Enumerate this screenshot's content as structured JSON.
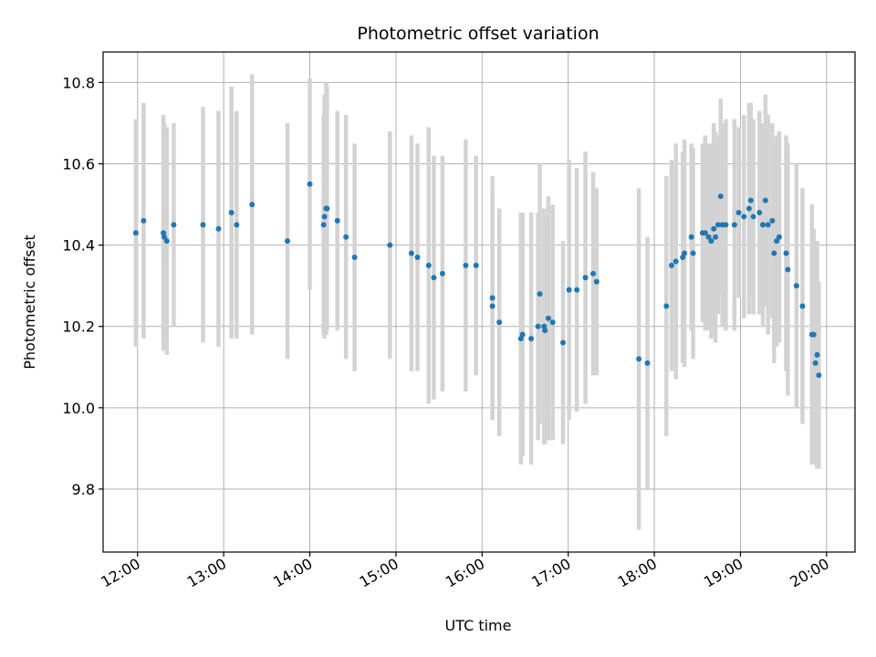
{
  "chart_data": {
    "type": "scatter",
    "title": "Photometric offset variation",
    "xlabel": "UTC time",
    "ylabel": "Photometric offset",
    "x_unit": "hour (UTC)",
    "xlim": [
      11.6,
      20.33
    ],
    "ylim": [
      9.645,
      10.875
    ],
    "x_ticks": [
      12,
      13,
      14,
      15,
      16,
      17,
      18,
      19,
      20
    ],
    "x_tick_labels": [
      "12:00",
      "13:00",
      "14:00",
      "15:00",
      "16:00",
      "17:00",
      "18:00",
      "19:00",
      "20:00"
    ],
    "y_ticks": [
      9.8,
      10.0,
      10.2,
      10.4,
      10.6,
      10.8
    ],
    "y_tick_labels": [
      "9.8",
      "10.0",
      "10.2",
      "10.4",
      "10.6",
      "10.8"
    ],
    "grid": true,
    "legend": "none",
    "colors": {
      "point": "#1f77b4",
      "errorbar": "#d3d3d3",
      "grid": "#b0b0b0"
    },
    "series": [
      {
        "x": [
          11.98,
          12.07,
          12.3,
          12.31,
          12.34,
          12.42,
          12.76,
          12.94,
          13.09,
          13.15,
          13.33,
          13.74,
          14.0,
          14.16,
          14.17,
          14.19,
          14.2,
          14.32,
          14.42,
          14.52,
          14.93,
          15.18,
          15.25,
          15.38,
          15.44,
          15.54,
          15.81,
          15.93,
          16.12,
          16.12,
          16.2,
          16.45,
          16.47,
          16.57,
          16.65,
          16.67,
          16.72,
          16.73,
          16.77,
          16.82,
          16.94,
          17.01,
          17.1,
          17.2,
          17.29,
          17.33,
          17.82,
          17.92,
          18.14,
          18.2,
          18.25,
          18.33,
          18.35,
          18.43,
          18.45,
          18.56,
          18.59,
          18.63,
          18.66,
          18.69,
          18.71,
          18.74,
          18.77,
          18.79,
          18.83,
          18.93,
          18.98,
          19.04,
          19.1,
          19.12,
          19.15,
          19.22,
          19.26,
          19.29,
          19.32,
          19.37,
          19.39,
          19.42,
          19.45,
          19.53,
          19.55,
          19.65,
          19.72,
          19.83,
          19.85,
          19.87,
          19.89,
          19.91
        ],
        "y": [
          10.43,
          10.46,
          10.43,
          10.42,
          10.41,
          10.45,
          10.45,
          10.44,
          10.48,
          10.45,
          10.5,
          10.41,
          10.55,
          10.45,
          10.47,
          10.49,
          10.49,
          10.46,
          10.42,
          10.37,
          10.4,
          10.38,
          10.37,
          10.35,
          10.32,
          10.33,
          10.35,
          10.35,
          10.27,
          10.25,
          10.21,
          10.17,
          10.18,
          10.17,
          10.2,
          10.28,
          10.2,
          10.19,
          10.22,
          10.21,
          10.16,
          10.29,
          10.29,
          10.32,
          10.33,
          10.31,
          10.12,
          10.11,
          10.25,
          10.35,
          10.36,
          10.37,
          10.38,
          10.42,
          10.38,
          10.43,
          10.43,
          10.42,
          10.41,
          10.44,
          10.42,
          10.45,
          10.52,
          10.45,
          10.45,
          10.45,
          10.48,
          10.47,
          10.49,
          10.51,
          10.47,
          10.48,
          10.45,
          10.51,
          10.45,
          10.46,
          10.38,
          10.41,
          10.42,
          10.38,
          10.34,
          10.3,
          10.25,
          10.18,
          10.18,
          10.11,
          10.13,
          10.08
        ],
        "yerr": [
          0.28,
          0.29,
          0.29,
          0.28,
          0.28,
          0.25,
          0.29,
          0.29,
          0.31,
          0.28,
          0.32,
          0.29,
          0.26,
          0.27,
          0.3,
          0.31,
          0.3,
          0.27,
          0.3,
          0.28,
          0.28,
          0.29,
          0.28,
          0.34,
          0.3,
          0.29,
          0.31,
          0.27,
          0.3,
          0.28,
          0.28,
          0.31,
          0.3,
          0.31,
          0.28,
          0.32,
          0.29,
          0.28,
          0.3,
          0.29,
          0.25,
          0.32,
          0.3,
          0.31,
          0.25,
          0.23,
          0.42,
          0.31,
          0.32,
          0.26,
          0.29,
          0.26,
          0.28,
          0.23,
          0.26,
          0.22,
          0.24,
          0.23,
          0.24,
          0.26,
          0.26,
          0.22,
          0.24,
          0.25,
          0.26,
          0.26,
          0.21,
          0.25,
          0.26,
          0.24,
          0.24,
          0.25,
          0.25,
          0.26,
          0.27,
          0.24,
          0.27,
          0.26,
          0.26,
          0.29,
          0.31,
          0.3,
          0.29,
          0.32,
          0.26,
          0.25,
          0.28,
          0.23
        ]
      }
    ]
  }
}
